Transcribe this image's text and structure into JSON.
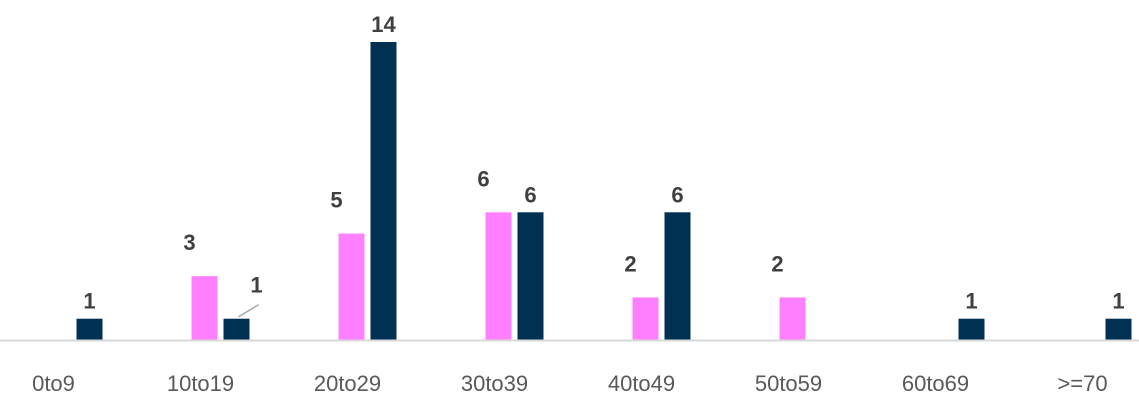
{
  "chart_data": {
    "type": "bar",
    "categories": [
      "0to9",
      "10to19",
      "20to29",
      "30to39",
      "40to49",
      "50to59",
      "60to69",
      ">=70"
    ],
    "series": [
      {
        "color": "#FF80FF",
        "values": [
          0,
          3,
          5,
          6,
          2,
          2,
          0,
          0
        ]
      },
      {
        "color": "#003153",
        "values": [
          1,
          1,
          14,
          6,
          6,
          0,
          1,
          1
        ]
      }
    ],
    "data_labels": [
      [
        null,
        "3",
        "5",
        "6",
        "2",
        "2",
        null,
        null
      ],
      [
        "1",
        "1",
        "14",
        "6",
        "6",
        null,
        "1",
        "1"
      ]
    ],
    "ylim": [
      0,
      14
    ],
    "grid": false,
    "legend": "none",
    "axis_color": "#D9D9D9"
  }
}
